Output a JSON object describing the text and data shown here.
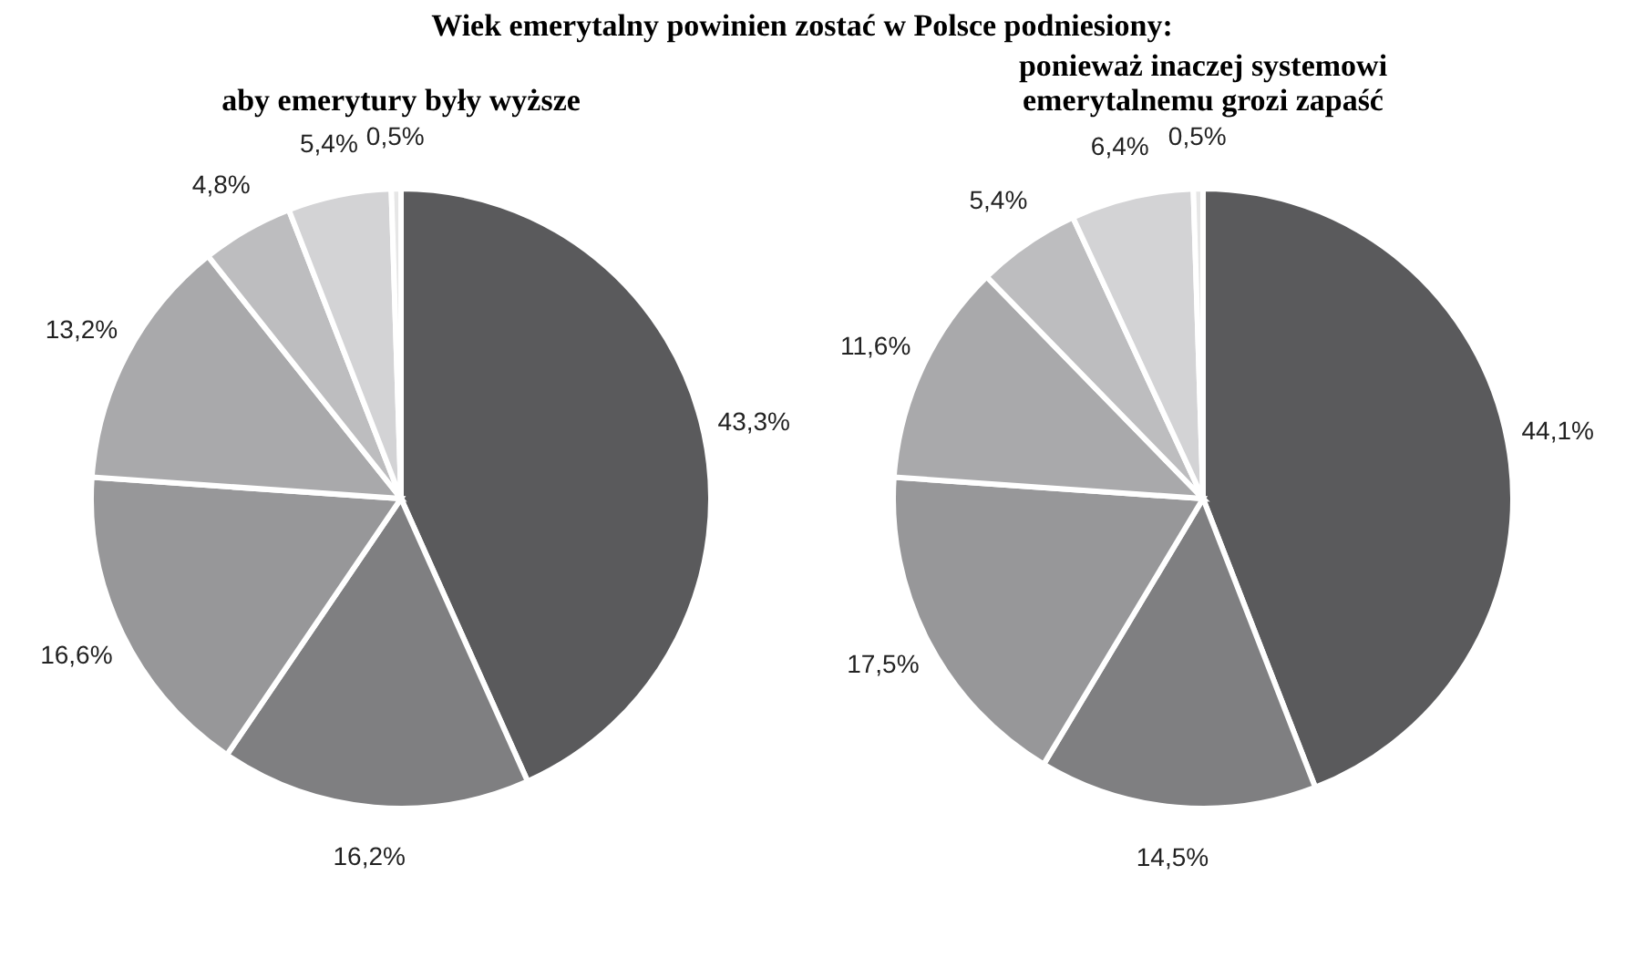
{
  "chart_data": [
    {
      "type": "pie",
      "title": "aby emerytury były wyższe",
      "annotations": [
        "Wiek emerytalny powinien zostać w Polsce podniesiony:"
      ],
      "categories": [
        null,
        null,
        null,
        null,
        null,
        null,
        null
      ],
      "values": [
        43.3,
        16.2,
        16.6,
        13.2,
        4.8,
        5.4,
        0.5
      ],
      "value_labels": [
        "43,3%",
        "16,2%",
        "16,6%",
        "13,2%",
        "4,8%",
        "5,4%",
        "0,5%"
      ],
      "colors": [
        "#5a5a5c",
        "#7f7f81",
        "#979799",
        "#a9a9ab",
        "#bdbdbf",
        "#d3d3d5",
        "#e6e6e6"
      ],
      "legend": false
    },
    {
      "type": "pie",
      "title": "ponieważ inaczej systemowi emerytalnemu grozi zapaść",
      "categories": [
        null,
        null,
        null,
        null,
        null,
        null,
        null
      ],
      "values": [
        44.1,
        14.5,
        17.5,
        11.6,
        5.4,
        6.4,
        0.5
      ],
      "value_labels": [
        "44,1%",
        "14,5%",
        "17,5%",
        "11,6%",
        "5,4%",
        "6,4%",
        "0,5%"
      ],
      "colors": [
        "#5a5a5c",
        "#7f7f81",
        "#979799",
        "#a9a9ab",
        "#bdbdbf",
        "#d3d3d5",
        "#e6e6e6"
      ],
      "legend": false
    }
  ]
}
